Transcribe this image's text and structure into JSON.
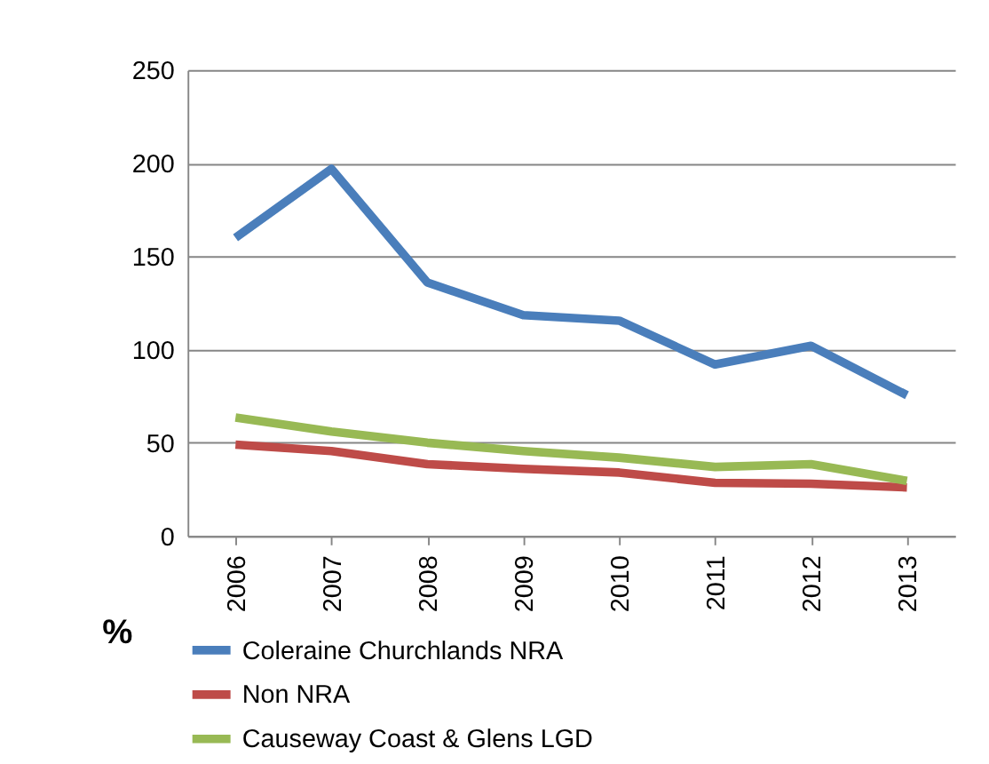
{
  "chart_data": {
    "type": "line",
    "categories": [
      "2006",
      "2007",
      "2008",
      "2009",
      "2010",
      "2011",
      "2012",
      "2013"
    ],
    "series": [
      {
        "name": "Coleraine Churchlands NRA",
        "color": "#4a7ebb",
        "values": [
          160,
          197,
          136,
          118.5,
          115.5,
          92,
          102,
          75.5
        ]
      },
      {
        "name": "Non NRA",
        "color": "#be4b48",
        "values": [
          49,
          45.5,
          38.5,
          36,
          34,
          28.5,
          28,
          26
        ]
      },
      {
        "name": "Causeway Coast & Glens LGD",
        "color": "#98b954",
        "values": [
          63.5,
          56,
          50,
          45.5,
          42,
          37,
          38.5,
          29.5
        ]
      }
    ],
    "ylim": [
      0,
      250
    ],
    "yticks": [
      0,
      50,
      100,
      150,
      200,
      250
    ],
    "grid": "y",
    "legend": "bottom",
    "marker": "none",
    "line_style": "solid",
    "annotations": [
      "%"
    ]
  }
}
